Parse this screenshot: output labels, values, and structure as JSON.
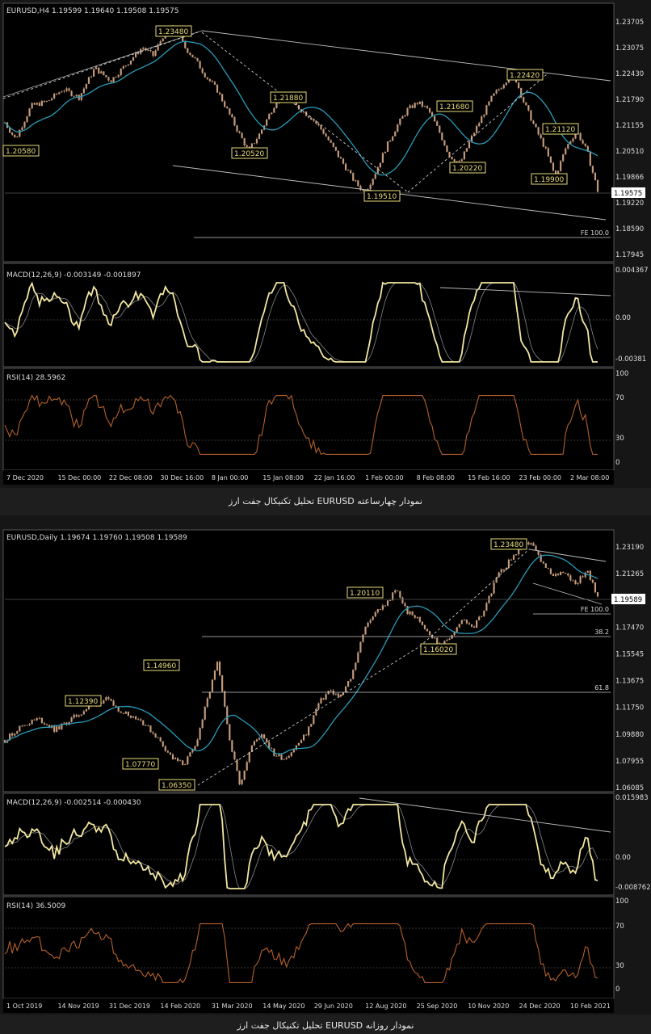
{
  "charts": [
    {
      "header": "EURUSD,H4  1.19599 1.19640 1.19508 1.19575",
      "current_price": "1.19575",
      "price_axis": [
        "1.23705",
        "1.23075",
        "1.22430",
        "1.21790",
        "1.21155",
        "1.20510",
        "1.19866",
        "1.19220",
        "1.18590",
        "1.17945"
      ],
      "price_min": 1.17945,
      "price_max": 1.23705,
      "annotations": [
        "1.23480",
        "1.21880",
        "1.20520",
        "1.19510",
        "1.21680",
        "1.20220",
        "1.22420",
        "1.21120",
        "1.19900",
        "1.20580"
      ],
      "fe_label": "FE 100.0",
      "macd_header": "MACD(12,26,9) -0.003149 -0.001897",
      "macd_axis": [
        "0.004367",
        "0.00",
        "-0.00381"
      ],
      "rsi_header": "RSI(14) 28.5962",
      "rsi_axis": [
        "100",
        "70",
        "30",
        "0"
      ],
      "x_labels": [
        "7 Dec 2020",
        "15 Dec 00:00",
        "22 Dec 08:00",
        "30 Dec 16:00",
        "8 Jan 00:00",
        "15 Jan 08:00",
        "22 Jan 16:00",
        "1 Feb 00:00",
        "8 Feb 08:00",
        "15 Feb 16:00",
        "23 Feb 00:00",
        "2 Mar 08:00"
      ],
      "caption": "تحلیل تکنیکال جفت ارز EURUSD نمودار چهارساعته"
    },
    {
      "header": "EURUSD,Daily  1.19674 1.19760 1.19508 1.19589",
      "current_price": "1.19589",
      "price_axis": [
        "1.23190",
        "1.21265",
        "1.19589",
        "1.17470",
        "1.15545",
        "1.13675",
        "1.11750",
        "1.09880",
        "1.07955",
        "1.06085"
      ],
      "price_min": 1.06085,
      "price_max": 1.2319,
      "annotations": [
        "1.23480",
        "1.20110",
        "1.16020",
        "1.14960",
        "1.12390",
        "1.07770",
        "1.06350"
      ],
      "fe_label": "FE 100.0",
      "fib_labels": [
        "38.2",
        "61.8"
      ],
      "macd_header": "MACD(12,26,9) -0.002514 -0.000430",
      "macd_axis": [
        "0.015983",
        "0.00",
        "-0.008762"
      ],
      "rsi_header": "RSI(14) 36.5009",
      "rsi_axis": [
        "100",
        "70",
        "30",
        "0"
      ],
      "x_labels": [
        "1 Oct 2019",
        "14 Nov 2019",
        "31 Dec 2019",
        "14 Feb 2020",
        "31 Mar 2020",
        "14 May 2020",
        "29 Jun 2020",
        "12 Aug 2020",
        "25 Sep 2020",
        "10 Nov 2020",
        "24 Dec 2020",
        "10 Feb 2021"
      ],
      "caption": "تحلیل تکنیکال جفت ارز EURUSD نمودار روزانه"
    }
  ],
  "chart_data": [
    {
      "type": "line",
      "title": "EURUSD,H4",
      "x": [
        "7 Dec 2020",
        "15 Dec 00:00",
        "22 Dec 08:00",
        "30 Dec 16:00",
        "8 Jan 00:00",
        "15 Jan 08:00",
        "22 Jan 16:00",
        "1 Feb 00:00",
        "8 Feb 08:00",
        "15 Feb 16:00",
        "23 Feb 00:00",
        "2 Mar 08:00"
      ],
      "series": [
        {
          "name": "EURUSD,H4",
          "values": [
            1.212,
            1.218,
            1.223,
            1.231,
            1.22,
            1.214,
            1.215,
            1.202,
            1.21,
            1.215,
            1.222,
            1.204
          ]
        }
      ],
      "price_points": [
        [
          0,
          1.212
        ],
        [
          2,
          1.208
        ],
        [
          5,
          1.216
        ],
        [
          8,
          1.217
        ],
        [
          11,
          1.22
        ],
        [
          14,
          1.218
        ],
        [
          17,
          1.225
        ],
        [
          20,
          1.222
        ],
        [
          23,
          1.226
        ],
        [
          26,
          1.23
        ],
        [
          28,
          1.228
        ],
        [
          30,
          1.233
        ],
        [
          32,
          1.2348
        ],
        [
          34,
          1.23
        ],
        [
          36,
          1.227
        ],
        [
          38,
          1.223
        ],
        [
          40,
          1.22
        ],
        [
          42,
          1.215
        ],
        [
          44,
          1.21
        ],
        [
          46,
          1.2052
        ],
        [
          48,
          1.209
        ],
        [
          50,
          1.214
        ],
        [
          52,
          1.2188
        ],
        [
          54,
          1.217
        ],
        [
          56,
          1.215
        ],
        [
          58,
          1.213
        ],
        [
          60,
          1.21
        ],
        [
          62,
          1.206
        ],
        [
          64,
          1.202
        ],
        [
          66,
          1.198
        ],
        [
          68,
          1.1951
        ],
        [
          70,
          1.2
        ],
        [
          72,
          1.206
        ],
        [
          74,
          1.211
        ],
        [
          76,
          1.215
        ],
        [
          78,
          1.2168
        ],
        [
          80,
          1.215
        ],
        [
          82,
          1.21
        ],
        [
          84,
          1.204
        ],
        [
          86,
          1.2022
        ],
        [
          88,
          1.208
        ],
        [
          90,
          1.213
        ],
        [
          92,
          1.218
        ],
        [
          94,
          1.221
        ],
        [
          96,
          1.2242
        ],
        [
          98,
          1.217
        ],
        [
          100,
          1.2112
        ],
        [
          102,
          1.206
        ],
        [
          104,
          1.199
        ],
        [
          106,
          1.206
        ],
        [
          108,
          1.21
        ],
        [
          110,
          1.205
        ],
        [
          112,
          1.1957
        ]
      ],
      "ylim": [
        1.17945,
        1.23705
      ]
    },
    {
      "type": "line",
      "title": "EURUSD,Daily",
      "x": [
        "1 Oct 2019",
        "14 Nov 2019",
        "31 Dec 2019",
        "14 Feb 2020",
        "31 Mar 2020",
        "14 May 2020",
        "29 Jun 2020",
        "12 Aug 2020",
        "25 Sep 2020",
        "10 Nov 2020",
        "24 Dec 2020",
        "10 Feb 2021"
      ],
      "price_points": [
        [
          0,
          1.095
        ],
        [
          3,
          1.105
        ],
        [
          6,
          1.11
        ],
        [
          9,
          1.102
        ],
        [
          12,
          1.11
        ],
        [
          15,
          1.118
        ],
        [
          18,
          1.1239
        ],
        [
          21,
          1.115
        ],
        [
          24,
          1.11
        ],
        [
          27,
          1.098
        ],
        [
          30,
          1.082
        ],
        [
          32,
          1.0777
        ],
        [
          34,
          1.09
        ],
        [
          36,
          1.12
        ],
        [
          38,
          1.1496
        ],
        [
          40,
          1.1
        ],
        [
          42,
          1.0635
        ],
        [
          44,
          1.09
        ],
        [
          46,
          1.1
        ],
        [
          48,
          1.085
        ],
        [
          50,
          1.082
        ],
        [
          52,
          1.09
        ],
        [
          54,
          1.1
        ],
        [
          56,
          1.12
        ],
        [
          58,
          1.13
        ],
        [
          60,
          1.125
        ],
        [
          62,
          1.14
        ],
        [
          64,
          1.17
        ],
        [
          66,
          1.185
        ],
        [
          68,
          1.19
        ],
        [
          70,
          1.2011
        ],
        [
          72,
          1.185
        ],
        [
          74,
          1.18
        ],
        [
          76,
          1.17
        ],
        [
          78,
          1.1602
        ],
        [
          80,
          1.17
        ],
        [
          82,
          1.18
        ],
        [
          84,
          1.175
        ],
        [
          86,
          1.19
        ],
        [
          88,
          1.21
        ],
        [
          90,
          1.22
        ],
        [
          92,
          1.23
        ],
        [
          94,
          1.2348
        ],
        [
          96,
          1.22
        ],
        [
          98,
          1.21
        ],
        [
          100,
          1.215
        ],
        [
          102,
          1.205
        ],
        [
          104,
          1.215
        ],
        [
          106,
          1.1959
        ]
      ],
      "ylim": [
        1.06085,
        1.2319
      ]
    }
  ]
}
